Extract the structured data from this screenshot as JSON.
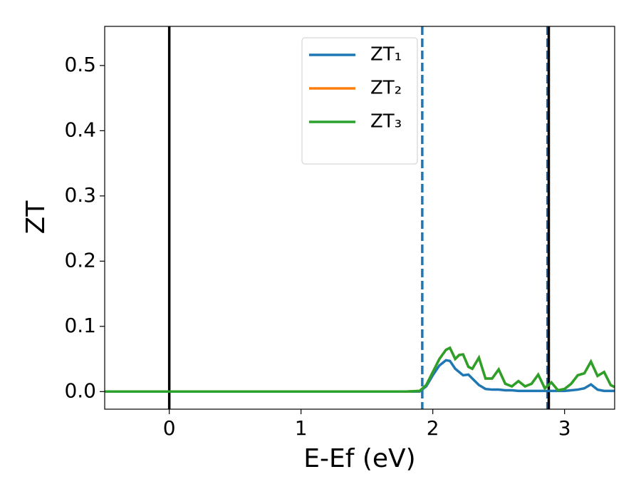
{
  "chart_data": {
    "type": "line",
    "xlabel": "E-Ef (eV)",
    "ylabel": "ZT",
    "xlim": [
      -0.49,
      3.38
    ],
    "ylim": [
      -0.027,
      0.56
    ],
    "xticks": [
      0,
      1,
      2,
      3
    ],
    "yticks": [
      {
        "value": 0,
        "label": "0.0"
      },
      0.1,
      0.2,
      0.3,
      0.4,
      0.5
    ],
    "legend": "upper center",
    "vlines": [
      {
        "x": 0,
        "color": "#000000",
        "style": "solid"
      },
      {
        "x": 1.92,
        "color": "#1f77b4",
        "style": "dashed"
      },
      {
        "x": 2.87,
        "color": "#1f77b4",
        "style": "dashed"
      },
      {
        "x": 2.88,
        "color": "#000000",
        "style": "solid"
      }
    ],
    "x": [
      -0.49,
      1.8,
      1.9,
      1.95,
      2.0,
      2.05,
      2.1,
      2.13,
      2.17,
      2.2,
      2.23,
      2.27,
      2.3,
      2.35,
      2.4,
      2.45,
      2.5,
      2.55,
      2.6,
      2.65,
      2.7,
      2.75,
      2.8,
      2.85,
      2.9,
      2.95,
      3.0,
      3.05,
      3.1,
      3.15,
      3.2,
      3.25,
      3.3,
      3.35,
      3.38
    ],
    "series": [
      {
        "name": "ZT₁",
        "color": "#1f77b4",
        "values": [
          0,
          0,
          0,
          0.008,
          0.025,
          0.04,
          0.048,
          0.047,
          0.035,
          0.03,
          0.025,
          0.026,
          0.02,
          0.01,
          0.004,
          0.003,
          0.003,
          0.002,
          0.002,
          0.001,
          0.001,
          0.001,
          0.001,
          0.001,
          0.001,
          0.001,
          0.001,
          0.002,
          0.003,
          0.005,
          0.011,
          0.003,
          0.001,
          0.001,
          0.001
        ]
      },
      {
        "name": "ZT₂",
        "color": "#ff7f0e",
        "values": [
          0,
          0,
          0.001,
          0.01,
          0.03,
          0.05,
          0.064,
          0.067,
          0.05,
          0.056,
          0.057,
          0.038,
          0.035,
          0.052,
          0.02,
          0.02,
          0.034,
          0.012,
          0.008,
          0.016,
          0.008,
          0.012,
          0.026,
          0.005,
          0.014,
          0.002,
          0.004,
          0.012,
          0.025,
          0.028,
          0.046,
          0.024,
          0.03,
          0.01,
          0.007
        ]
      },
      {
        "name": "ZT₃",
        "color": "#2ca02c",
        "values": [
          0,
          0,
          0.001,
          0.01,
          0.03,
          0.05,
          0.064,
          0.067,
          0.05,
          0.056,
          0.057,
          0.038,
          0.035,
          0.052,
          0.02,
          0.02,
          0.034,
          0.012,
          0.008,
          0.016,
          0.008,
          0.012,
          0.026,
          0.005,
          0.014,
          0.002,
          0.004,
          0.012,
          0.025,
          0.028,
          0.046,
          0.024,
          0.03,
          0.01,
          0.007
        ]
      }
    ]
  }
}
